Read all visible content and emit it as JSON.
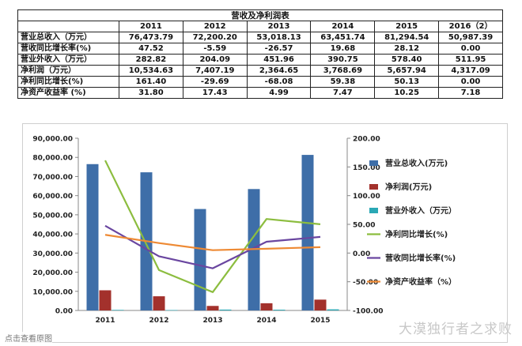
{
  "table": {
    "title": "营收及净利润表",
    "years": [
      "2011",
      "2012",
      "2013",
      "2014",
      "2015",
      "2016（2）"
    ],
    "rows": [
      {
        "label": "营业总收入（万元）",
        "values": [
          "76,473.79",
          "72,200.20",
          "53,018.13",
          "63,451.74",
          "81,294.54",
          "50,987.39"
        ]
      },
      {
        "label": "营收同比增长率(%)",
        "values": [
          "47.52",
          "-5.59",
          "-26.57",
          "19.68",
          "28.12",
          "0.00"
        ]
      },
      {
        "label": "营业外收入（万元）",
        "values": [
          "282.82",
          "204.09",
          "451.96",
          "390.75",
          "578.40",
          "511.95"
        ]
      },
      {
        "label": "净利润（万元）",
        "values": [
          "10,534.63",
          "7,407.19",
          "2,364.65",
          "3,768.69",
          "5,657.94",
          "4,317.09"
        ]
      },
      {
        "label": "净利同比增长(%)",
        "values": [
          "161.40",
          "-29.69",
          "-68.08",
          "59.38",
          "50.13",
          "0.00"
        ]
      },
      {
        "label": "净资产收益率 (%)",
        "values": [
          "31.80",
          "17.43",
          "4.99",
          "7.47",
          "10.25",
          "7.18"
        ]
      }
    ]
  },
  "chart_data": {
    "type": "bar",
    "categories": [
      "2011",
      "2012",
      "2013",
      "2014",
      "2015"
    ],
    "y_left_ticks": [
      "0.00",
      "10,000.00",
      "20,000.00",
      "30,000.00",
      "40,000.00",
      "50,000.00",
      "60,000.00",
      "70,000.00",
      "80,000.00",
      "90,000.00"
    ],
    "y_right_ticks": [
      "-100.00",
      "-50.00",
      "0.00",
      "50.00",
      "100.00",
      "150.00",
      "200.00"
    ],
    "ylim_left": [
      0,
      90000
    ],
    "ylim_right": [
      -100,
      200
    ],
    "legend_position": "right",
    "series": [
      {
        "name": "营业总收入(万元)",
        "kind": "bar",
        "axis": "left",
        "color": "#3e6ea8",
        "values": [
          76473.79,
          72200.2,
          53018.13,
          63451.74,
          81294.54
        ]
      },
      {
        "name": "净利润(万元)",
        "kind": "bar",
        "axis": "left",
        "color": "#a3312c",
        "values": [
          10534.63,
          7407.19,
          2364.65,
          3768.69,
          5657.94
        ]
      },
      {
        "name": "营业外收入（万元）",
        "kind": "bar",
        "axis": "left",
        "color": "#2aa8b5",
        "values": [
          282.82,
          204.09,
          451.96,
          390.75,
          578.4
        ]
      },
      {
        "name": "净利同比增长(%)",
        "kind": "line",
        "axis": "right",
        "color": "#8cbd3f",
        "values": [
          161.4,
          -29.69,
          -68.08,
          59.38,
          50.13
        ]
      },
      {
        "name": "营收同比增长率(%)",
        "kind": "line",
        "axis": "right",
        "color": "#6a46a0",
        "values": [
          47.52,
          -5.59,
          -26.57,
          19.68,
          28.12
        ]
      },
      {
        "name": "净资产收益率（%）",
        "kind": "line",
        "axis": "right",
        "color": "#ee8a34",
        "values": [
          31.8,
          17.43,
          4.99,
          7.47,
          10.25
        ]
      }
    ]
  },
  "watermarks": {
    "left": "点击查看原图",
    "right": "大漠独行者之求败"
  }
}
